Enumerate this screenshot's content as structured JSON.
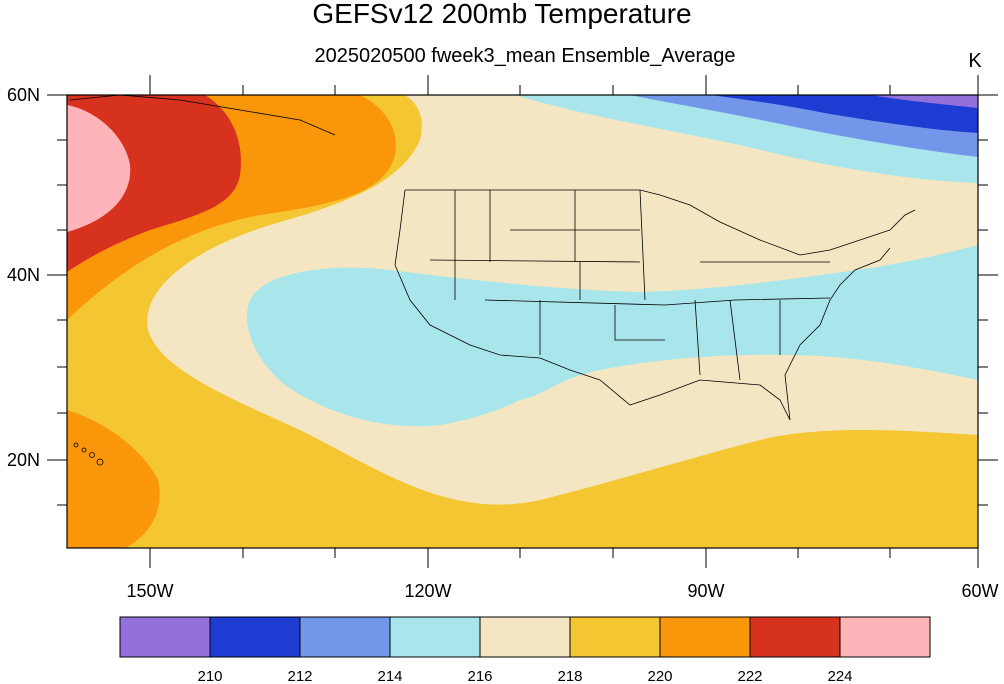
{
  "title": "GEFSv12 200mb Temperature",
  "subtitle": "2025020500 fweek3_mean Ensemble_Average",
  "units": "K",
  "lat_labels": [
    "60N",
    "40N",
    "20N"
  ],
  "lon_labels": [
    "150W",
    "120W",
    "90W",
    "60W"
  ],
  "colorbar": {
    "colors": [
      "#9370db",
      "#1e3cd2",
      "#7396eb",
      "#a8e6eb",
      "#f5e6c3",
      "#f3c632",
      "#fa960a",
      "#d7321e",
      "#ffb4b9"
    ],
    "labels": [
      "210",
      "212",
      "214",
      "216",
      "218",
      "220",
      "222",
      "224"
    ]
  }
}
